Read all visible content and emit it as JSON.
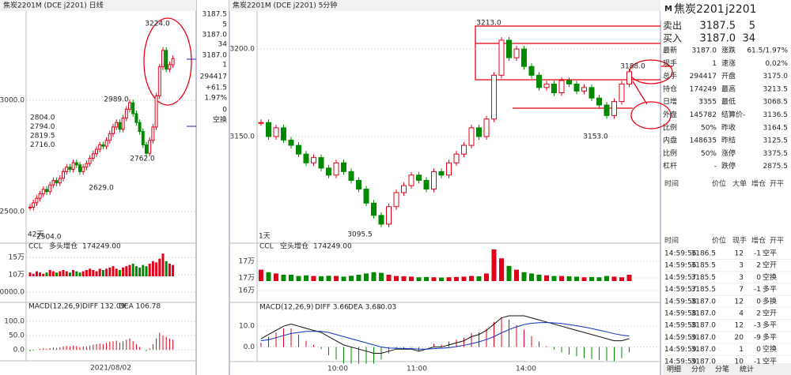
{
  "left_chart": {
    "title": "焦炭2201M (DCE j2201) 日线",
    "ylim": [
      2387,
      3397
    ],
    "yticks": [
      {
        "value": 3000,
        "label": "3000.0"
      },
      {
        "value": 2500,
        "label": "2500.0"
      }
    ],
    "closes": [
      2520,
      2540,
      2560,
      2580,
      2600,
      2590,
      2620,
      2640,
      2629,
      2650,
      2680,
      2700,
      2690,
      2720,
      2710,
      2680,
      2700,
      2716,
      2740,
      2760,
      2780,
      2800,
      2794,
      2820,
      2850,
      2880,
      2900,
      2870,
      2920,
      2960,
      2989,
      2940,
      2900,
      2860,
      2800,
      2762,
      2820,
      2880,
      3020,
      3150,
      3224,
      3140,
      3160,
      3187
    ],
    "annotations": [
      "3224.0",
      "2989.0",
      "2762.0",
      "2629.0"
    ],
    "legend": [
      "2804.0",
      "2794.0",
      "2819.5",
      "2716.0"
    ],
    "days": "42天",
    "low": "2504.0",
    "vol_title": "CCL",
    "vol_tag": "多头增仓",
    "vol_value": "174249.00",
    "vol_ylim": [
      16000,
      182000
    ],
    "vol_ticks": [
      {
        "value": 150000,
        "label": "15万"
      },
      {
        "value": 100000,
        "label": "10万"
      },
      {
        "value": 50000,
        "label": "50000.0"
      }
    ],
    "volumes": [
      3,
      2,
      4,
      3,
      2,
      3,
      5,
      4,
      3,
      4,
      5,
      4,
      3,
      5,
      4,
      3,
      4,
      5,
      6,
      5,
      4,
      6,
      5,
      6,
      7,
      8,
      6,
      5,
      7,
      8,
      9,
      10,
      8,
      7,
      9,
      8,
      10,
      12,
      11,
      14,
      18,
      12,
      10,
      9
    ],
    "macd_title": "MACD(12,26,9)",
    "diff": "DIFF 132.09",
    "dea": "DEA 106.78",
    "macd_ylim": [
      -33,
      161
    ],
    "macd_ticks": [
      {
        "value": 100,
        "label": "100.0"
      },
      {
        "value": 50,
        "label": "50.0"
      },
      {
        "value": 0,
        "label": "0.0"
      }
    ],
    "hist": [
      -5,
      -3,
      0,
      3,
      5,
      4,
      6,
      8,
      7,
      9,
      12,
      14,
      12,
      15,
      13,
      10,
      11,
      12,
      15,
      18,
      20,
      22,
      20,
      24,
      28,
      30,
      32,
      25,
      30,
      35,
      40,
      30,
      20,
      10,
      0,
      -5,
      5,
      20,
      40,
      60,
      50,
      45,
      40,
      35
    ],
    "date": "2021/08/02"
  },
  "side_axis": [
    "3187.5",
    "5",
    "3187.0",
    "34",
    "3187.0",
    "1",
    "294417",
    "+61.5",
    "1.97%",
    "0",
    "空换"
  ],
  "main_chart": {
    "title": "焦炭2201M (DCE j2201) 5分钟",
    "ylim": [
      3090.5,
      3221.2
    ],
    "yticks": [
      {
        "value": 3200,
        "label": "3200.0"
      },
      {
        "value": 3150,
        "label": "3150.0"
      }
    ],
    "closes": [
      3158,
      3150,
      3155,
      3148,
      3145,
      3140,
      3135,
      3138,
      3132,
      3128,
      3135,
      3130,
      3125,
      3120,
      3112,
      3105,
      3100,
      3110,
      3118,
      3122,
      3128,
      3125,
      3120,
      3130,
      3128,
      3135,
      3140,
      3145,
      3155,
      3150,
      3160,
      3185,
      3205,
      3195,
      3200,
      3190,
      3185,
      3178,
      3180,
      3175,
      3182,
      3180,
      3176,
      3178,
      3172,
      3168,
      3162,
      3170,
      3180,
      3187
    ],
    "annotations": [
      "3213.0",
      "3153.0",
      "3095.5",
      "3188.0"
    ],
    "days": "1天",
    "vol_title": "CCL",
    "vol_tag": "空头增仓",
    "vol_value": "174249.00",
    "vol_ylim": [
      160000,
      178000
    ],
    "vol_ticks": [
      {
        "value": 174750,
        "label": "17万"
      },
      {
        "value": 169500,
        "label": "17万"
      },
      {
        "value": 165500,
        "label": "16万"
      }
    ],
    "volumes": [
      900,
      700,
      600,
      500,
      500,
      400,
      450,
      400,
      380,
      420,
      400,
      350,
      420,
      500,
      600,
      700,
      650,
      500,
      400,
      380,
      350,
      300,
      320,
      300,
      280,
      300,
      320,
      350,
      400,
      380,
      600,
      2500,
      1800,
      1200,
      900,
      700,
      600,
      500,
      450,
      400,
      400,
      380,
      350,
      300,
      320,
      300,
      400,
      350,
      300,
      500
    ],
    "macd_title": "MACD(12,26,9)",
    "diff_label": "DIFF 3.66",
    "dea_label": "DEA 3.68",
    "macd_value": "-0.03",
    "macd_ylim": [
      -7,
      20.7
    ],
    "macd_ticks": [
      {
        "value": 10,
        "label": "10.0"
      },
      {
        "value": 0,
        "label": "0.0"
      }
    ],
    "diff": [
      4,
      6,
      8,
      10,
      11,
      10,
      9,
      8,
      7,
      5,
      3,
      1,
      0,
      -1,
      -2,
      -3,
      -3,
      -2,
      -1,
      -1,
      -1,
      -2,
      -1,
      0,
      0,
      1,
      2,
      3,
      5,
      6,
      8,
      11,
      14,
      15,
      15,
      15,
      14,
      13,
      12,
      11,
      10,
      9,
      8,
      7,
      6,
      5,
      4,
      3,
      3,
      4
    ],
    "dea": [
      3,
      3.5,
      4.5,
      5.5,
      6.5,
      7,
      7.5,
      7.5,
      7.5,
      7,
      6,
      5,
      4,
      3,
      2,
      1,
      0,
      -0.5,
      -0.6,
      -0.7,
      -0.8,
      -1,
      -1,
      -0.8,
      -0.6,
      -0.3,
      0.2,
      0.8,
      1.6,
      2.5,
      3.6,
      5,
      6.8,
      8.4,
      9.7,
      10.8,
      11.4,
      11.7,
      11.8,
      11.6,
      11.3,
      10.8,
      10.2,
      9.6,
      8.9,
      8.1,
      7.3,
      6.4,
      5.7,
      5.3
    ],
    "hist": [
      2,
      5,
      7,
      9,
      9,
      6,
      3,
      1,
      -1,
      -4,
      -6,
      -8,
      -8,
      -8,
      -8,
      -8,
      -6,
      -3,
      -1,
      -1,
      -0.4,
      -2,
      0,
      1.6,
      1.2,
      2.6,
      3.6,
      4.4,
      6.8,
      7,
      8.8,
      12,
      14.4,
      13.2,
      10.6,
      8.4,
      5.2,
      2.6,
      0.4,
      -1.2,
      -2.6,
      -3.6,
      -4.4,
      -5.2,
      -5.8,
      -6.2,
      -6.6,
      -6.8,
      -5.4,
      -2.6
    ],
    "times": [
      "10:00",
      "11:00",
      "14:00"
    ]
  },
  "quote": {
    "badge": "M",
    "name": "焦炭2201",
    "code": "j2201",
    "ask": [
      "卖出",
      "3187.5",
      "5"
    ],
    "bid": [
      "买入",
      "3187.0",
      "34"
    ],
    "rows": [
      [
        "最新",
        "3187.0",
        "涨跌",
        "61.5/1.97%"
      ],
      [
        "现手",
        "1",
        "速涨",
        "0.02%"
      ],
      [
        "总手",
        "294417",
        "开盘",
        "3175.0"
      ],
      [
        "持仓",
        "174249",
        "最高",
        "3213.5"
      ],
      [
        "日增",
        "3355",
        "最低",
        "3068.5"
      ],
      [
        "外盘",
        "145782",
        "结算价-",
        "3136.5"
      ],
      [
        "比例",
        "50%",
        "昨收",
        "3164.5"
      ],
      [
        "内盘",
        "148635",
        "昨结",
        "3125.5"
      ],
      [
        "比例",
        "50%",
        "涨停",
        "3375.5"
      ],
      [
        "杠杆",
        "-",
        "跌停",
        "2875.5"
      ]
    ],
    "big_header": [
      "时间",
      "价位",
      "大单",
      "增仓",
      "开平"
    ],
    "trade_header": [
      "时间",
      "价位",
      "现手",
      "增仓",
      "开平"
    ],
    "trades": [
      [
        "14:59:56",
        "3186.5",
        "12",
        "-1",
        "空平"
      ],
      [
        "14:59:56",
        "3185.5",
        "3",
        "2",
        "空开"
      ],
      [
        "14:59:57",
        "3185.5",
        "3",
        "0",
        "空换"
      ],
      [
        "14:59:57",
        "3185.5",
        "7",
        "-1",
        "多平"
      ],
      [
        "14:59:58",
        "3187.0",
        "12",
        "0",
        "多换"
      ],
      [
        "14:59:58",
        "3187.0",
        "4",
        "2",
        "空开"
      ],
      [
        "14:59:58",
        "3187.0",
        "12",
        "-3",
        "多平"
      ],
      [
        "14:59:59",
        "3187.0",
        "20",
        "-9",
        "多平"
      ],
      [
        "14:59:59",
        "3187.0",
        "1",
        "0",
        "空换"
      ],
      [
        "14:59:59",
        "3187.0",
        "10",
        "-1",
        "空平"
      ]
    ],
    "tabs": [
      "明细",
      "分价",
      "分笔",
      "统计"
    ]
  }
}
